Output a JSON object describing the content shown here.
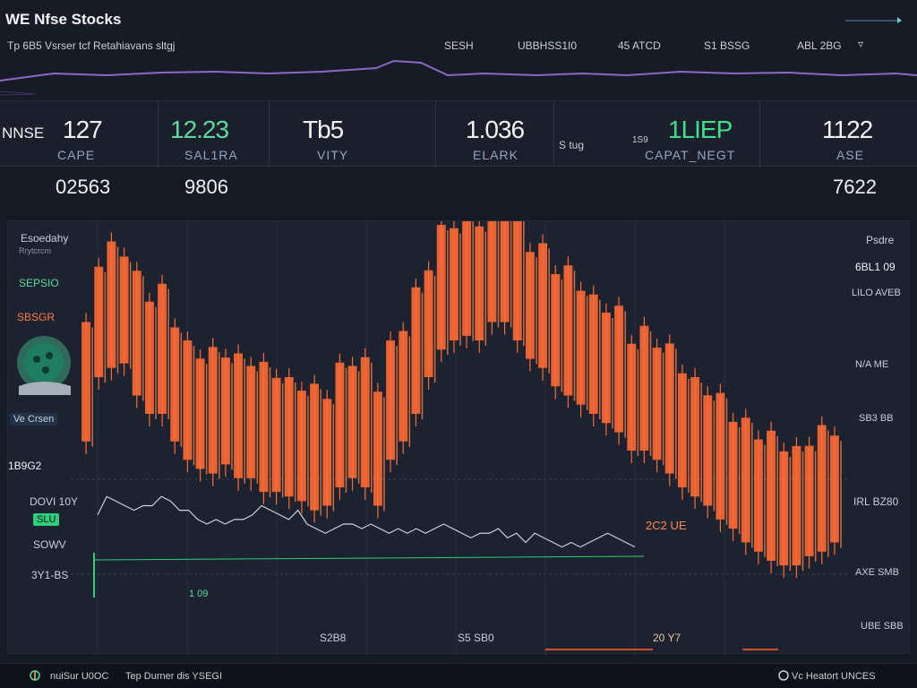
{
  "header": {
    "title": "WE Nfse Stocks",
    "subtitle": "Tp 6B5  Vsrser tcf Retahiavans sltgj",
    "nav": [
      {
        "label": "SESH"
      },
      {
        "label": "UBBHSS1I0"
      },
      {
        "label": "45 ATCD"
      },
      {
        "label": "S1 BSSG"
      },
      {
        "label": "ABL 2BG"
      }
    ],
    "caret": "▿"
  },
  "tickers": {
    "exchange": "NNSE",
    "items": [
      {
        "value": "127",
        "label": "CAPE"
      },
      {
        "value": "12.23",
        "label": "SAL1RA"
      },
      {
        "value": "Tb5",
        "label": "VITY"
      },
      {
        "value": "1.036",
        "label": "ELARK"
      },
      {
        "value": "1LIEP",
        "label": "CAPAT_NEGT"
      },
      {
        "value": "1122",
        "label": "ASE"
      }
    ],
    "side_labels": {
      "ticker5_prefix": "S tug",
      "ticker5_small": "1S9"
    }
  },
  "summary": {
    "left_value": "02563",
    "mid_value": "9806",
    "right_value": "7622"
  },
  "chart_panel": {
    "legend_title": "Esoedahy",
    "legend_sub": "Rrytcrcm",
    "left_labels": {
      "l1": "SEPSIO",
      "l2": "SBSGR",
      "l3": "Ve Crsen",
      "l4": "1B9G2",
      "l5": "DOVI 10Y",
      "l6": "SLU",
      "l7": "SOWV",
      "l8": "3Y1-BS"
    },
    "right_labels": {
      "r1": "Psdre",
      "r2": "6BL1 09",
      "r3": "LILO AVEB",
      "r4": "N/A ME",
      "r5": "SB3 BB",
      "r6": "IRL BZ80",
      "r7": "AXE SMB",
      "r8": "UBE SBB"
    },
    "bottom_labels": {
      "b1": "1 09",
      "b2": "S2B8",
      "b3": "S5 SB0",
      "b4": "20 Y7"
    },
    "annotation": "2C2 UE",
    "candle_up_color": "#ff6a35",
    "line_color": "#c8d4e0",
    "accent_green": "#2fce7a"
  },
  "chart_data": {
    "type": "bar",
    "series": [
      {
        "values": [
          52,
          66,
          68,
          69,
          62,
          58,
          58,
          52,
          48,
          46,
          45,
          47,
          44,
          44,
          41,
          41,
          40,
          39,
          37,
          38,
          42,
          44,
          42,
          38,
          48,
          52,
          58,
          66,
          72,
          74,
          75,
          74,
          78,
          78,
          74,
          70,
          68,
          64,
          62,
          60,
          58,
          56,
          54,
          50,
          50,
          48,
          45,
          42,
          40,
          38,
          35,
          33,
          30,
          28,
          26,
          25,
          25,
          27,
          28,
          30
        ]
      },
      {
        "values": [
          18,
          22,
          21,
          20,
          19,
          20,
          20,
          22,
          21,
          19,
          19,
          17,
          16,
          17,
          16,
          17,
          17,
          18,
          20,
          19,
          18,
          17,
          19,
          16,
          15,
          14,
          15,
          16,
          16,
          15,
          16,
          15,
          14,
          15,
          14,
          15,
          14,
          15,
          16,
          15,
          14,
          13,
          14,
          14,
          15,
          13,
          14,
          12,
          14,
          13,
          12,
          11,
          12,
          11,
          12,
          13,
          14,
          13,
          12,
          11
        ]
      }
    ]
  },
  "status": {
    "left_text": "nuiSur U0OC",
    "mid_text": "Tep  Durner  dis  YSEGI",
    "right_text": "Vc Heatort UNCES"
  }
}
